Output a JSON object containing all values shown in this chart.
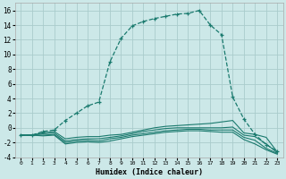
{
  "xlabel": "Humidex (Indice chaleur)",
  "bg_color": "#cce8e8",
  "grid_color": "#aacccc",
  "line_color": "#1a7a6e",
  "xlim": [
    -0.5,
    23.5
  ],
  "ylim": [
    -4,
    17
  ],
  "xticks": [
    0,
    1,
    2,
    3,
    4,
    5,
    6,
    7,
    8,
    9,
    10,
    11,
    12,
    13,
    14,
    15,
    16,
    17,
    18,
    19,
    20,
    21,
    22,
    23
  ],
  "yticks": [
    -4,
    -2,
    0,
    2,
    4,
    6,
    8,
    10,
    12,
    14,
    16
  ],
  "series": [
    {
      "x": [
        0,
        1,
        2,
        3,
        4,
        5,
        6,
        7,
        8,
        9,
        10,
        11,
        12,
        13,
        14,
        15,
        16,
        17,
        18,
        19,
        20,
        21,
        22,
        23
      ],
      "y": [
        -1,
        -1,
        -0.7,
        -0.5,
        -1.5,
        -1.3,
        -1.2,
        -1.2,
        -1.0,
        -0.9,
        -0.6,
        -0.3,
        0.0,
        0.2,
        0.3,
        0.4,
        0.5,
        0.6,
        0.8,
        1.0,
        -0.7,
        -0.9,
        -1.3,
        -3.3
      ],
      "marker": null,
      "linestyle": "-",
      "lw": 0.8
    },
    {
      "x": [
        0,
        1,
        2,
        3,
        4,
        5,
        6,
        7,
        8,
        9,
        10,
        11,
        12,
        13,
        14,
        15,
        16,
        17,
        18,
        19,
        20,
        21,
        22,
        23
      ],
      "y": [
        -1,
        -1,
        -0.8,
        -0.7,
        -1.8,
        -1.6,
        -1.5,
        -1.5,
        -1.3,
        -1.1,
        -0.8,
        -0.5,
        -0.3,
        -0.1,
        0.0,
        0.0,
        0.0,
        0.0,
        0.0,
        0.1,
        -1.0,
        -1.2,
        -2.2,
        -3.4
      ],
      "marker": null,
      "linestyle": "-",
      "lw": 0.8
    },
    {
      "x": [
        0,
        1,
        2,
        3,
        4,
        5,
        6,
        7,
        8,
        9,
        10,
        11,
        12,
        13,
        14,
        15,
        16,
        17,
        18,
        19,
        20,
        21,
        22,
        23
      ],
      "y": [
        -1,
        -1,
        -1.0,
        -0.9,
        -2.0,
        -1.8,
        -1.7,
        -1.8,
        -1.5,
        -1.3,
        -1.0,
        -0.8,
        -0.6,
        -0.4,
        -0.3,
        -0.2,
        -0.2,
        -0.3,
        -0.3,
        -0.3,
        -1.3,
        -1.7,
        -2.8,
        -3.5
      ],
      "marker": null,
      "linestyle": "-",
      "lw": 0.8
    },
    {
      "x": [
        0,
        1,
        2,
        3,
        4,
        5,
        6,
        7,
        8,
        9,
        10,
        11,
        12,
        13,
        14,
        15,
        16,
        17,
        18,
        19,
        20,
        21,
        22,
        23
      ],
      "y": [
        -1,
        -1,
        -1.1,
        -1.0,
        -2.2,
        -2.0,
        -1.9,
        -2.0,
        -1.8,
        -1.5,
        -1.2,
        -1.0,
        -0.8,
        -0.6,
        -0.5,
        -0.4,
        -0.4,
        -0.5,
        -0.6,
        -0.6,
        -1.6,
        -2.2,
        -3.0,
        -3.6
      ],
      "marker": null,
      "linestyle": "-",
      "lw": 0.8
    },
    {
      "x": [
        0,
        1,
        2,
        3,
        4,
        5,
        6,
        7,
        8,
        9,
        10,
        11,
        12,
        13,
        14,
        15,
        16,
        17,
        18,
        19,
        20,
        21,
        22,
        23
      ],
      "y": [
        -1,
        -1,
        -0.5,
        -0.3,
        1.0,
        2.0,
        3.0,
        3.5,
        9.0,
        12.2,
        13.9,
        14.5,
        14.9,
        15.2,
        15.5,
        15.6,
        16.0,
        14.0,
        12.7,
        4.2,
        1.2,
        -0.9,
        -2.3,
        -3.2
      ],
      "marker": "+",
      "linestyle": "--",
      "lw": 0.9
    }
  ]
}
